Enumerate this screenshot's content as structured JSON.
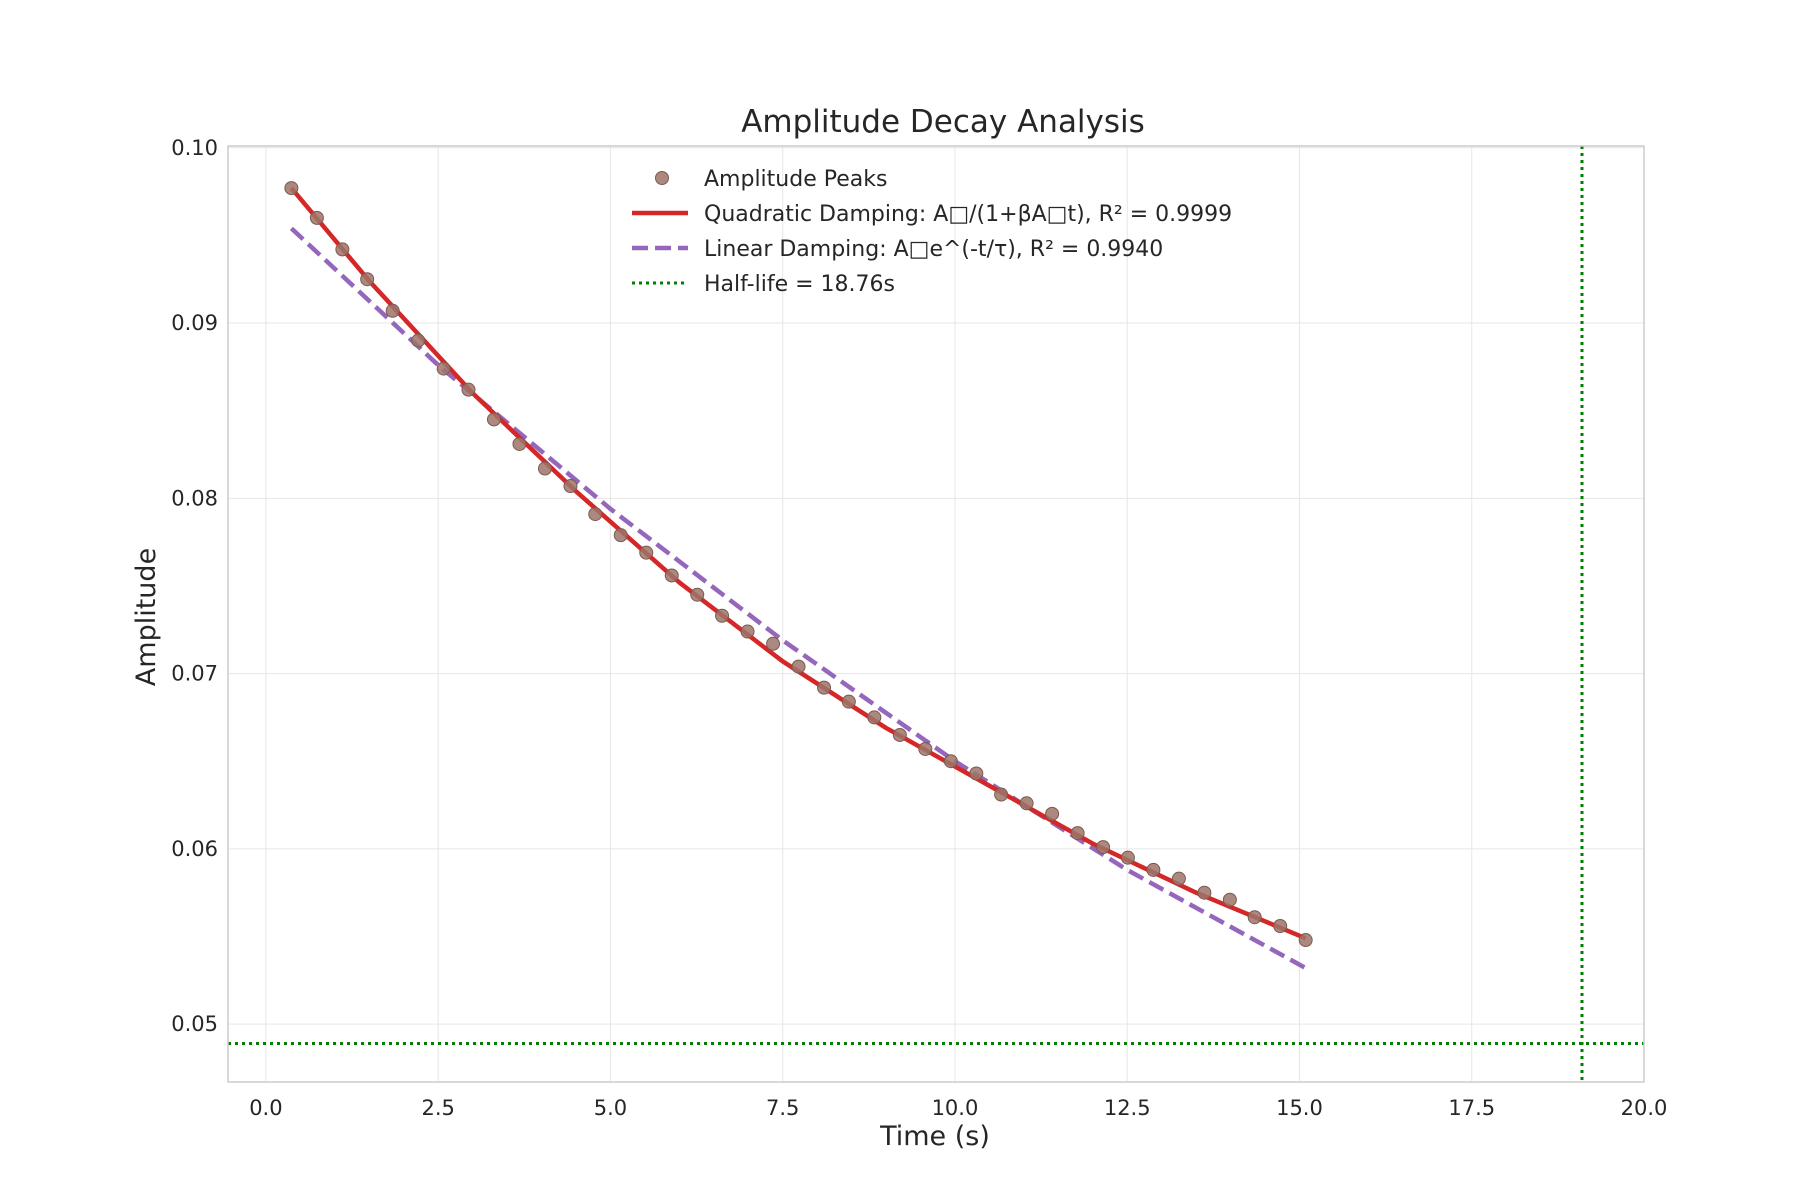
{
  "chart_data": {
    "type": "line",
    "title": "Amplitude Decay Analysis",
    "xlabel": "Time (s)",
    "ylabel": "Amplitude",
    "xlim": [
      -0.55,
      20.0
    ],
    "ylim": [
      0.0467,
      0.1001
    ],
    "xticks": [
      0.0,
      2.5,
      5.0,
      7.5,
      10.0,
      12.5,
      15.0,
      17.5,
      20.0
    ],
    "xtick_labels": [
      "0.0",
      "2.5",
      "5.0",
      "7.5",
      "10.0",
      "12.5",
      "15.0",
      "17.5",
      "20.0"
    ],
    "yticks": [
      0.05,
      0.06,
      0.07,
      0.08,
      0.09,
      0.1
    ],
    "ytick_labels": [
      "0.05",
      "0.06",
      "0.07",
      "0.08",
      "0.09",
      "0.10"
    ],
    "grid": true,
    "legend_position": "top-center",
    "colors": {
      "peaks": "#9e7468",
      "quadratic": "#d62728",
      "linear": "#9467bd",
      "halflife": "#008000",
      "grid": "#e6e6e6",
      "frame": "#cccccc"
    },
    "series": [
      {
        "name": "Amplitude Peaks",
        "kind": "scatter",
        "x": [
          0.37,
          0.74,
          1.11,
          1.47,
          1.84,
          2.21,
          2.58,
          2.94,
          3.31,
          3.68,
          4.05,
          4.42,
          4.78,
          5.15,
          5.52,
          5.89,
          6.26,
          6.62,
          6.99,
          7.36,
          7.73,
          8.1,
          8.46,
          8.83,
          9.2,
          9.57,
          9.94,
          10.31,
          10.67,
          11.04,
          11.41,
          11.78,
          12.15,
          12.51,
          12.88,
          13.25,
          13.62,
          13.99,
          14.35,
          14.72,
          15.09
        ],
        "y": [
          0.0977,
          0.096,
          0.0942,
          0.0925,
          0.0907,
          0.089,
          0.0874,
          0.0862,
          0.0845,
          0.0831,
          0.0817,
          0.0807,
          0.0791,
          0.0779,
          0.0769,
          0.0756,
          0.0745,
          0.0733,
          0.0724,
          0.0717,
          0.0704,
          0.0692,
          0.0684,
          0.0675,
          0.0665,
          0.0657,
          0.065,
          0.0643,
          0.0631,
          0.0626,
          0.062,
          0.0609,
          0.0601,
          0.0595,
          0.0588,
          0.0583,
          0.0575,
          0.0571,
          0.0561,
          0.0556,
          0.0548
        ]
      },
      {
        "name": "Quadratic Damping: A□/(1+βA□t), R² = 0.9999",
        "kind": "line",
        "style": "solid",
        "x": [
          0.37,
          1.5,
          3.0,
          4.5,
          6.0,
          7.5,
          9.0,
          10.5,
          12.0,
          13.5,
          15.09
        ],
        "y": [
          0.0977,
          0.0924,
          0.086,
          0.0804,
          0.0752,
          0.0707,
          0.0669,
          0.0636,
          0.0603,
          0.0575,
          0.0549
        ]
      },
      {
        "name": "Linear Damping: A□e^(-t/τ), R² = 0.9940",
        "kind": "line",
        "style": "dashed",
        "x": [
          0.37,
          2.5,
          5.0,
          7.5,
          10.0,
          12.5,
          15.09
        ],
        "y": [
          0.0954,
          0.0876,
          0.0794,
          0.0719,
          0.065,
          0.0588,
          0.0532
        ]
      },
      {
        "name": "Half-life = 18.76s",
        "kind": "reference",
        "style": "dotted",
        "x_vertical": 19.1,
        "y_horizontal": 0.0489
      }
    ]
  }
}
